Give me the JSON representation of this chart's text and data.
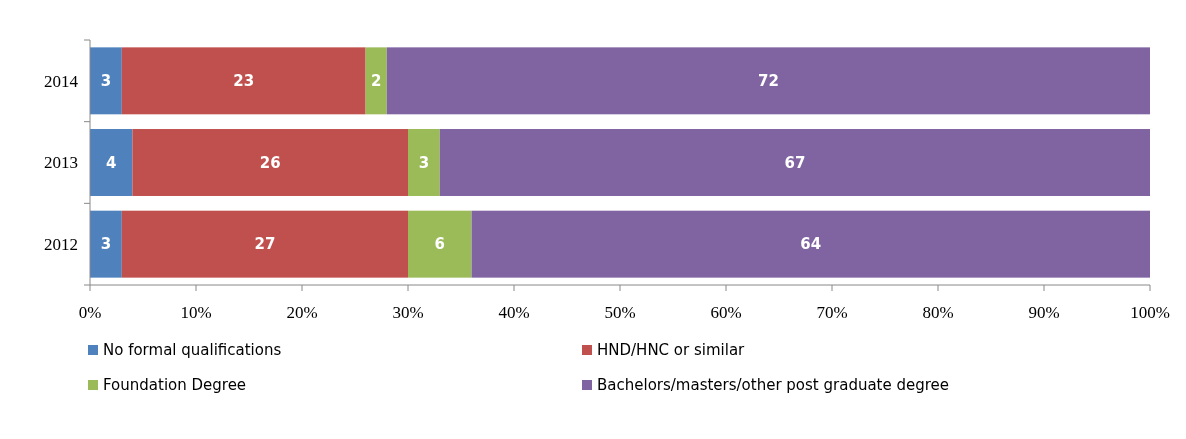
{
  "chart_data": {
    "type": "bar",
    "orientation": "horizontal",
    "stacked": true,
    "categories": [
      "2014",
      "2013",
      "2012"
    ],
    "series": [
      {
        "name": "No formal qualifications",
        "color": "#4f81bd",
        "values": [
          3,
          4,
          3
        ]
      },
      {
        "name": "HND/HNC or similar",
        "color": "#c0504d",
        "values": [
          23,
          26,
          27
        ]
      },
      {
        "name": "Foundation Degree",
        "color": "#9bbb59",
        "values": [
          2,
          3,
          6
        ]
      },
      {
        "name": "Bachelors/masters/other post graduate degree",
        "color": "#8064a2",
        "values": [
          72,
          67,
          64
        ]
      }
    ],
    "xlim": [
      0,
      100
    ],
    "xticks": [
      {
        "value": 0,
        "label": "0%"
      },
      {
        "value": 10,
        "label": "10%"
      },
      {
        "value": 20,
        "label": "20%"
      },
      {
        "value": 30,
        "label": "30%"
      },
      {
        "value": 40,
        "label": "40%"
      },
      {
        "value": 50,
        "label": "50%"
      },
      {
        "value": 60,
        "label": "60%"
      },
      {
        "value": 70,
        "label": "70%"
      },
      {
        "value": 80,
        "label": "80%"
      },
      {
        "value": 90,
        "label": "90%"
      },
      {
        "value": 100,
        "label": "100%"
      }
    ],
    "data_labels": true,
    "grid": false,
    "legend": "bottom"
  }
}
